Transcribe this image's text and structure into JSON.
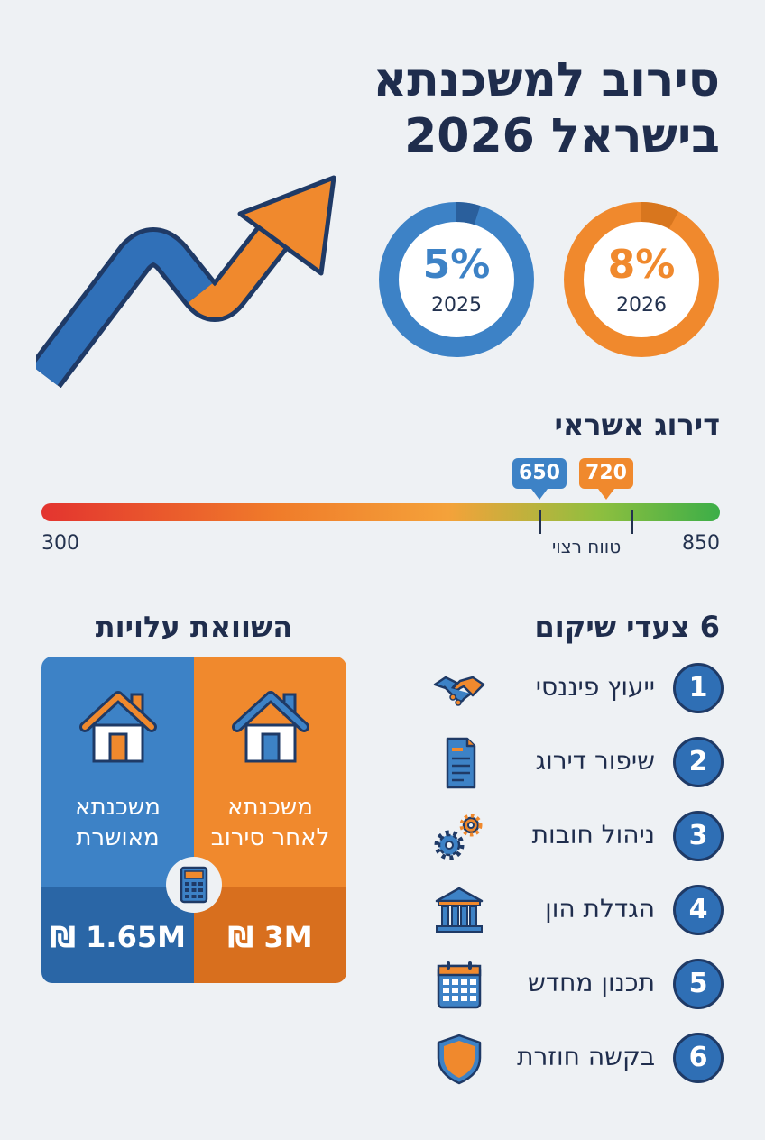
{
  "title": {
    "line1": "סירוב למשכנתא",
    "line2": "בישראל 2026"
  },
  "rings": [
    {
      "value": "5%",
      "year": "2025",
      "color": "#3d82c6"
    },
    {
      "value": "8%",
      "year": "2026",
      "color": "#f0892d"
    }
  ],
  "credit": {
    "heading": "דירוג אשראי",
    "min": "300",
    "max": "850",
    "pins": [
      {
        "value": "650",
        "color": "#3d82c6"
      },
      {
        "value": "720",
        "color": "#f0892d"
      }
    ],
    "range_label": "טווח רצוי"
  },
  "comparison": {
    "heading": "השוואת עלויות",
    "approved": {
      "label_line1": "משכנתא",
      "label_line2": "מאושרת",
      "amount": "1.65M ₪"
    },
    "after_reject": {
      "label_line1": "משכנתא",
      "label_line2": "לאחר סירוב",
      "amount": "3M ₪"
    },
    "calculator_icon": "calculator-icon"
  },
  "steps": {
    "heading": "6 צעדי שיקום",
    "items": [
      {
        "num": "1",
        "label": "ייעוץ פיננסי",
        "icon": "handshake-icon"
      },
      {
        "num": "2",
        "label": "שיפור דירוג",
        "icon": "document-icon"
      },
      {
        "num": "3",
        "label": "ניהול חובות",
        "icon": "gears-icon"
      },
      {
        "num": "4",
        "label": "הגדלת הון",
        "icon": "bank-icon"
      },
      {
        "num": "5",
        "label": "תכנון מחדש",
        "icon": "calendar-icon"
      },
      {
        "num": "6",
        "label": "בקשה חוזרת",
        "icon": "shield-icon"
      }
    ]
  },
  "colors": {
    "blue": "#3d82c6",
    "blue_dark": "#2a66a6",
    "orange": "#f0892d",
    "orange_dark": "#d86f1e",
    "navy": "#1f2d4d"
  }
}
